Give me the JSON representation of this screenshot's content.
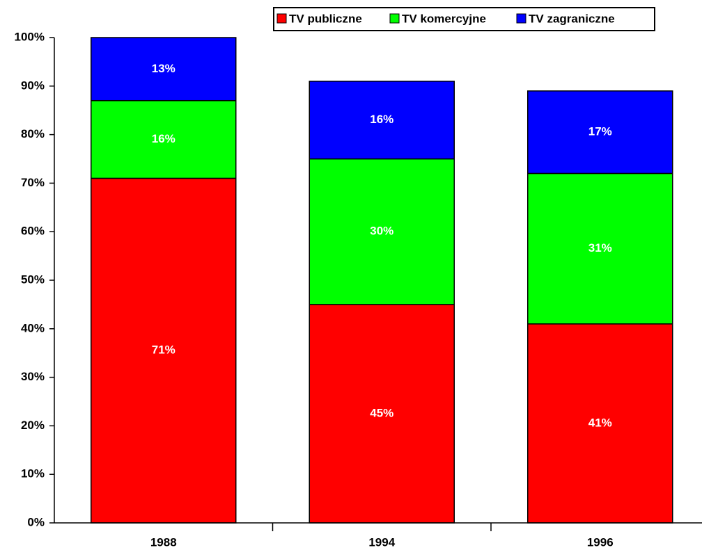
{
  "chart_data": {
    "type": "stacked_bar",
    "categories": [
      "1988",
      "1994",
      "1996"
    ],
    "series": [
      {
        "name": "TV publiczne",
        "color": "#ff0000",
        "values": [
          71,
          45,
          41
        ],
        "value_labels": [
          "71%",
          "45%",
          "41%"
        ]
      },
      {
        "name": "TV komercyjne",
        "color": "#00ff00",
        "values": [
          16,
          30,
          31
        ],
        "value_labels": [
          "16%",
          "30%",
          "31%"
        ]
      },
      {
        "name": "TV zagraniczne",
        "color": "#0000ff",
        "values": [
          13,
          16,
          17
        ],
        "value_labels": [
          "13%",
          "16%",
          "17%"
        ]
      }
    ],
    "ylim": [
      0,
      100
    ],
    "yticks": [
      {
        "value": 0,
        "label": "0%"
      },
      {
        "value": 10,
        "label": "10%"
      },
      {
        "value": 20,
        "label": "20%"
      },
      {
        "value": 30,
        "label": "30%"
      },
      {
        "value": 40,
        "label": "40%"
      },
      {
        "value": 50,
        "label": "50%"
      },
      {
        "value": 60,
        "label": "60%"
      },
      {
        "value": 70,
        "label": "70%"
      },
      {
        "value": 80,
        "label": "80%"
      },
      {
        "value": 90,
        "label": "90%"
      },
      {
        "value": 100,
        "label": "100%"
      }
    ],
    "legend": "top",
    "grid": false
  }
}
